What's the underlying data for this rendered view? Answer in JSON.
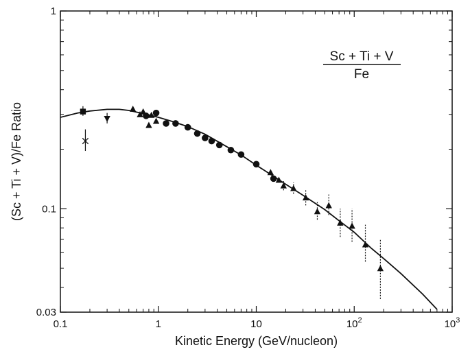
{
  "chart_data": {
    "type": "scatter",
    "xlabel": "Kinetic Energy (GeV/nucleon)",
    "ylabel": "(Sc + Ti + V)/Fe Ratio",
    "xscale": "log",
    "yscale": "log",
    "xlim": [
      0.1,
      1000
    ],
    "ylim": [
      0.03,
      1
    ],
    "x_ticks": [
      {
        "value": 0.1,
        "label": "0.1"
      },
      {
        "value": 1,
        "label": "1"
      },
      {
        "value": 10,
        "label": "10"
      },
      {
        "value": 100,
        "label": "10",
        "exp": "2"
      },
      {
        "value": 1000,
        "label": "10",
        "exp": "3"
      }
    ],
    "y_ticks": [
      {
        "value": 0.03,
        "label": "0.03"
      },
      {
        "value": 0.1,
        "label": "0.1"
      },
      {
        "value": 1,
        "label": "1"
      }
    ],
    "annotation": {
      "numerator": "Sc + Ti + V",
      "denominator": "Fe"
    },
    "grid": false,
    "model_curve": {
      "x": [
        0.1,
        0.15,
        0.2,
        0.3,
        0.4,
        0.5,
        0.7,
        1,
        1.5,
        2,
        3,
        5,
        7,
        10,
        15,
        20,
        30,
        50,
        70,
        100,
        150,
        200,
        300,
        500,
        700
      ],
      "y": [
        0.29,
        0.305,
        0.312,
        0.318,
        0.318,
        0.314,
        0.303,
        0.29,
        0.273,
        0.26,
        0.238,
        0.206,
        0.187,
        0.166,
        0.146,
        0.133,
        0.117,
        0.099,
        0.087,
        0.076,
        0.063,
        0.056,
        0.047,
        0.037,
        0.031
      ]
    },
    "series": [
      {
        "marker": "square",
        "points": [
          {
            "x": 0.17,
            "y": 0.31,
            "err": [
              0.295,
              0.33
            ]
          }
        ]
      },
      {
        "marker": "cross",
        "points": [
          {
            "x": 0.18,
            "y": 0.22,
            "err": [
              0.196,
              0.252
            ]
          }
        ]
      },
      {
        "marker": "triangle-down",
        "points": [
          {
            "x": 0.3,
            "y": 0.285,
            "err": [
              0.27,
              0.305
            ]
          }
        ]
      },
      {
        "marker": "triangle-up",
        "points": [
          {
            "x": 0.55,
            "y": 0.32
          },
          {
            "x": 0.65,
            "y": 0.3
          },
          {
            "x": 0.7,
            "y": 0.31
          },
          {
            "x": 0.8,
            "y": 0.265
          },
          {
            "x": 0.85,
            "y": 0.298
          },
          {
            "x": 0.95,
            "y": 0.278
          },
          {
            "x": 14,
            "y": 0.153
          },
          {
            "x": 17,
            "y": 0.14
          }
        ]
      },
      {
        "marker": "circle",
        "points": [
          {
            "x": 0.75,
            "y": 0.295
          },
          {
            "x": 0.95,
            "y": 0.305
          },
          {
            "x": 1.2,
            "y": 0.27
          },
          {
            "x": 1.5,
            "y": 0.27
          },
          {
            "x": 2.0,
            "y": 0.258
          },
          {
            "x": 2.5,
            "y": 0.24
          },
          {
            "x": 3.0,
            "y": 0.228
          },
          {
            "x": 3.5,
            "y": 0.22
          },
          {
            "x": 4.2,
            "y": 0.21
          },
          {
            "x": 5.5,
            "y": 0.198
          },
          {
            "x": 7.0,
            "y": 0.188
          },
          {
            "x": 10,
            "y": 0.168
          },
          {
            "x": 15,
            "y": 0.142
          }
        ]
      },
      {
        "marker": "triangle-up-dotted",
        "points": [
          {
            "x": 19,
            "y": 0.131,
            "err": [
              0.124,
              0.138
            ]
          },
          {
            "x": 24,
            "y": 0.127,
            "err": [
              0.119,
              0.136
            ]
          },
          {
            "x": 32,
            "y": 0.114,
            "err": [
              0.104,
              0.126
            ]
          },
          {
            "x": 42,
            "y": 0.097,
            "err": [
              0.088,
              0.108
            ]
          },
          {
            "x": 55,
            "y": 0.104,
            "err": [
              0.093,
              0.118
            ]
          },
          {
            "x": 72,
            "y": 0.085,
            "err": [
              0.072,
              0.1
            ]
          },
          {
            "x": 95,
            "y": 0.082,
            "err": [
              0.068,
              0.1
            ]
          },
          {
            "x": 130,
            "y": 0.066,
            "err": [
              0.054,
              0.083
            ]
          },
          {
            "x": 185,
            "y": 0.05,
            "err": [
              0.035,
              0.07
            ]
          }
        ]
      }
    ]
  }
}
